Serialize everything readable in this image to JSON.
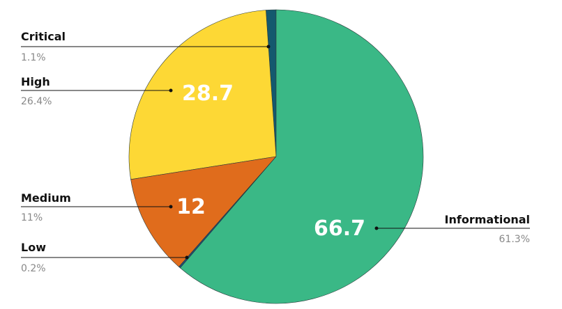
{
  "chart_data": {
    "type": "pie",
    "categories": [
      "Critical",
      "High",
      "Medium",
      "Low",
      "Informational"
    ],
    "values": [
      1.2,
      28.7,
      12,
      0.2,
      66.7
    ],
    "percent_labels": [
      "1.1%",
      "26.4%",
      "11%",
      "0.2%",
      "61.3%"
    ],
    "colors": [
      "#14596e",
      "#fdd835",
      "#e06c1c",
      "#1f4e79",
      "#3ab886"
    ]
  }
}
